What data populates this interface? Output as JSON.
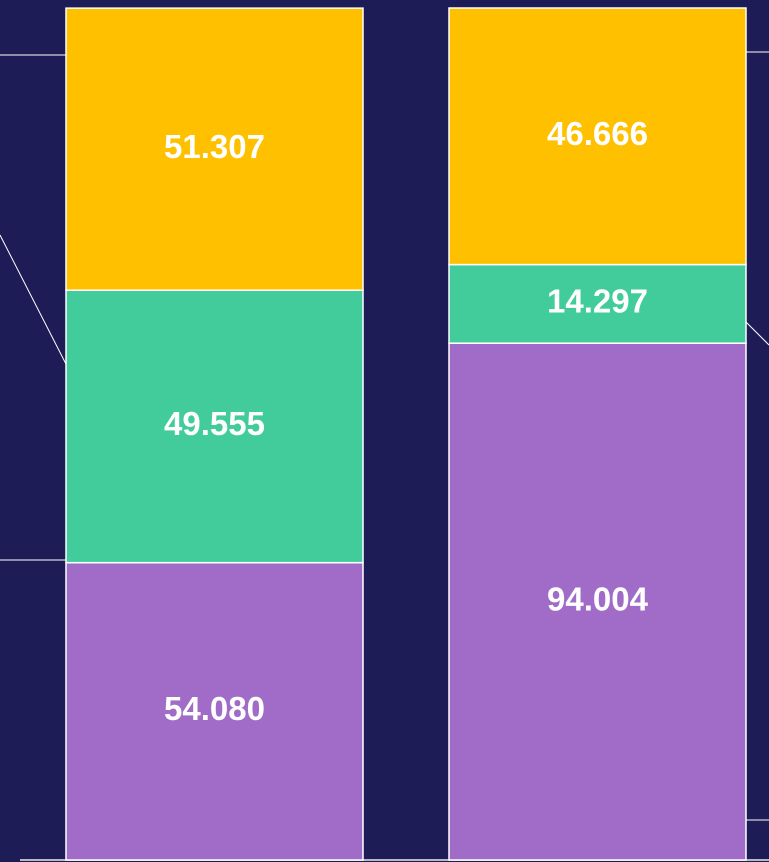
{
  "chart_data": {
    "type": "stacked_bar",
    "series": [
      {
        "color": "#a06cc8",
        "values": [
          54.08,
          94.004
        ],
        "value_labels": [
          "54.080",
          "94.004"
        ]
      },
      {
        "color": "#42cc9c",
        "values": [
          49.555,
          14.297
        ],
        "value_labels": [
          "49.555",
          "14.297"
        ]
      },
      {
        "color": "#ffc000",
        "values": [
          51.307,
          46.666
        ],
        "value_labels": [
          "51.307",
          "46.666"
        ]
      }
    ]
  }
}
